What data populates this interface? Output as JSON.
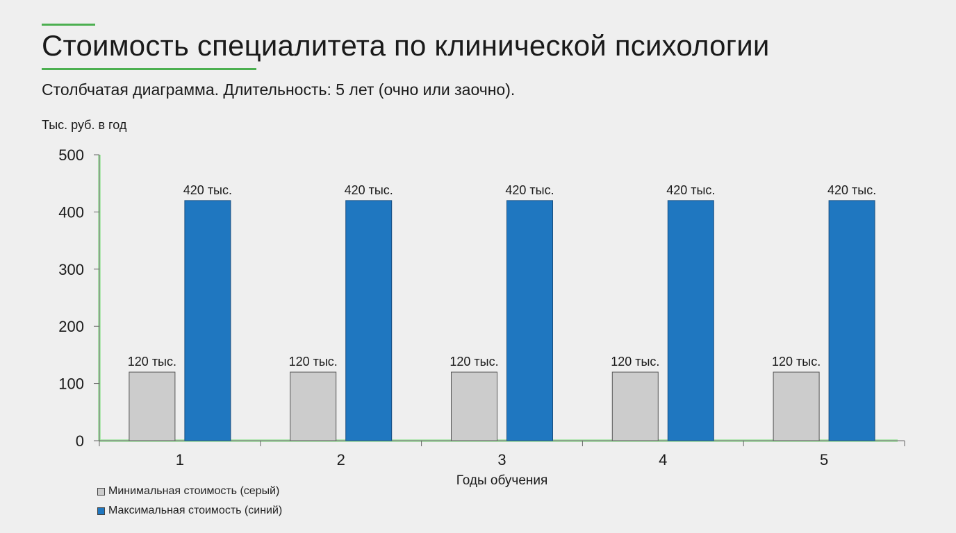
{
  "title": "Стоимость специалитета по клинической психологии",
  "subtitle": "Столбчатая диаграмма. Длительность: 5 лет (очно или заочно).",
  "colors": {
    "accent": "#4caf50",
    "min": "#cccccc",
    "max": "#1f77c0"
  },
  "chart_data": {
    "type": "bar",
    "title": "Стоимость специалитета по клинической психологии",
    "ylabel": "Тыс. руб. в год",
    "xlabel": "Годы обучения",
    "categories": [
      "1",
      "2",
      "3",
      "4",
      "5"
    ],
    "ylim": [
      0,
      500
    ],
    "yticks": [
      0,
      100,
      200,
      300,
      400,
      500
    ],
    "grid": false,
    "legend_position": "bottom-left",
    "series": [
      {
        "name": "Минимальная стоимость (серый)",
        "color": "#cccccc",
        "values": [
          120,
          120,
          120,
          120,
          120
        ],
        "labels": [
          "120 тыс.",
          "120 тыс.",
          "120 тыс.",
          "120 тыс.",
          "120 тыс."
        ]
      },
      {
        "name": "Максимальная стоимость (синий)",
        "color": "#1f77c0",
        "values": [
          420,
          420,
          420,
          420,
          420
        ],
        "labels": [
          "420 тыс.",
          "420 тыс.",
          "420 тыс.",
          "420 тыс.",
          "420 тыс."
        ]
      }
    ]
  }
}
